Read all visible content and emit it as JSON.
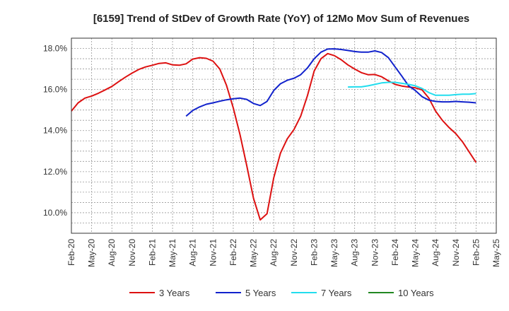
{
  "chart_data": {
    "type": "line",
    "title": "[6159]  Trend of StDev of Growth Rate (YoY) of 12Mo Mov Sum of Revenues",
    "xlabel": "",
    "ylabel": "",
    "ylim": [
      9.0,
      18.5
    ],
    "y_ticks": [
      10.0,
      12.0,
      14.0,
      16.0,
      18.0
    ],
    "y_tick_labels": [
      "10.0%",
      "12.0%",
      "14.0%",
      "16.0%",
      "18.0%"
    ],
    "x_tick_labels": [
      "Feb-20",
      "May-20",
      "Aug-20",
      "Nov-20",
      "Feb-21",
      "May-21",
      "Aug-21",
      "Nov-21",
      "Feb-22",
      "May-22",
      "Aug-22",
      "Nov-22",
      "Feb-23",
      "May-23",
      "Aug-23",
      "Nov-23",
      "Feb-24",
      "May-24",
      "Aug-24",
      "Nov-24",
      "Feb-25",
      "May-25"
    ],
    "x_range_months": [
      0,
      63
    ],
    "grid": true,
    "legend_position": "bottom",
    "series": [
      {
        "name": "3 Years",
        "color": "#dd1111",
        "x": [
          0,
          1,
          2,
          3,
          4,
          5,
          6,
          7,
          8,
          9,
          10,
          11,
          12,
          13,
          14,
          15,
          16,
          17,
          18,
          19,
          20,
          21,
          22,
          23,
          24,
          25,
          26,
          27,
          28,
          29,
          30,
          31,
          32,
          33,
          34,
          35,
          36,
          37,
          38,
          39,
          40,
          41,
          42,
          43,
          44,
          45,
          46,
          47,
          48,
          49,
          50,
          51,
          52,
          53,
          54,
          55,
          56,
          57,
          58,
          59,
          60
        ],
        "values": [
          14.95,
          15.35,
          15.58,
          15.68,
          15.82,
          15.98,
          16.15,
          16.38,
          16.6,
          16.8,
          16.98,
          17.1,
          17.18,
          17.27,
          17.3,
          17.2,
          17.18,
          17.25,
          17.48,
          17.55,
          17.52,
          17.38,
          17.0,
          16.2,
          15.1,
          13.8,
          12.3,
          10.7,
          9.65,
          9.95,
          11.7,
          12.9,
          13.6,
          14.05,
          14.7,
          15.7,
          16.9,
          17.5,
          17.75,
          17.65,
          17.45,
          17.2,
          17.0,
          16.82,
          16.72,
          16.73,
          16.62,
          16.42,
          16.25,
          16.17,
          16.12,
          16.08,
          15.98,
          15.58,
          14.95,
          14.5,
          14.15,
          13.85,
          13.45,
          12.95,
          12.45
        ]
      },
      {
        "name": "5 Years",
        "color": "#1122cc",
        "x": [
          17,
          18,
          19,
          20,
          21,
          22,
          23,
          24,
          25,
          26,
          27,
          28,
          29,
          30,
          31,
          32,
          33,
          34,
          35,
          36,
          37,
          38,
          39,
          40,
          41,
          42,
          43,
          44,
          45,
          46,
          47,
          48,
          49,
          50,
          51,
          52,
          53,
          54,
          55,
          56,
          57,
          58,
          59,
          60
        ],
        "values": [
          14.7,
          14.98,
          15.15,
          15.28,
          15.35,
          15.43,
          15.5,
          15.55,
          15.58,
          15.52,
          15.32,
          15.22,
          15.42,
          15.95,
          16.28,
          16.45,
          16.55,
          16.72,
          17.05,
          17.5,
          17.82,
          17.97,
          17.98,
          17.95,
          17.9,
          17.85,
          17.82,
          17.82,
          17.88,
          17.8,
          17.55,
          17.1,
          16.65,
          16.18,
          15.95,
          15.65,
          15.48,
          15.42,
          15.4,
          15.4,
          15.42,
          15.4,
          15.38,
          15.35
        ]
      },
      {
        "name": "7 Years",
        "color": "#22ddee",
        "x": [
          41,
          42,
          43,
          44,
          45,
          46,
          47,
          48,
          49,
          50,
          51,
          52,
          53,
          54,
          55,
          56,
          57,
          58,
          59,
          60
        ],
        "values": [
          16.12,
          16.13,
          16.13,
          16.18,
          16.25,
          16.32,
          16.35,
          16.35,
          16.3,
          16.25,
          16.18,
          16.05,
          15.85,
          15.72,
          15.72,
          15.72,
          15.75,
          15.77,
          15.77,
          15.8
        ]
      },
      {
        "name": "10 Years",
        "color": "#228822",
        "x": [],
        "values": []
      }
    ]
  }
}
